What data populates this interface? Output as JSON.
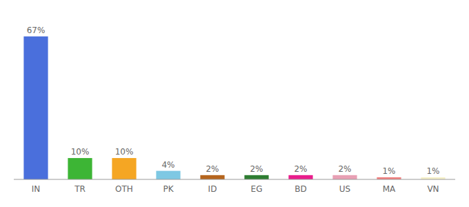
{
  "chart_data": {
    "type": "bar",
    "categories": [
      "IN",
      "TR",
      "OTH",
      "PK",
      "ID",
      "EG",
      "BD",
      "US",
      "MA",
      "VN"
    ],
    "values": [
      67,
      10,
      10,
      4,
      2,
      2,
      2,
      2,
      1,
      1
    ],
    "value_labels": [
      "67%",
      "10%",
      "10%",
      "4%",
      "2%",
      "2%",
      "2%",
      "2%",
      "1%",
      "1%"
    ],
    "colors": [
      "#4a6fdc",
      "#3db535",
      "#f5a623",
      "#7ec8e3",
      "#b5651d",
      "#2e7d32",
      "#e91e8c",
      "#e8a0b4",
      "#f08080",
      "#f5f0c8"
    ],
    "ylim": [
      0,
      75
    ],
    "data_labels": true,
    "tick_labels": "x",
    "grid": false
  }
}
